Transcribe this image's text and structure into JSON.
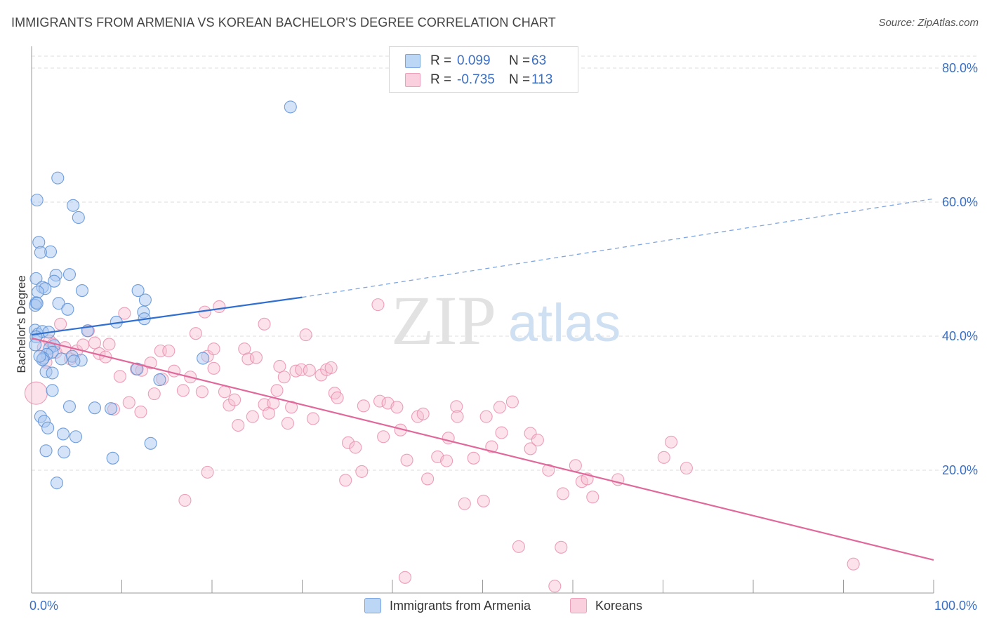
{
  "title": "IMMIGRANTS FROM ARMENIA VS KOREAN BACHELOR'S DEGREE CORRELATION CHART",
  "source": "Source: ZipAtlas.com",
  "watermark": {
    "zip": "ZIP",
    "atlas": "atlas"
  },
  "legend": {
    "armenia": {
      "r_label": "R =",
      "r_value": "0.099",
      "n_label": "N =",
      "n_value": "63"
    },
    "korean": {
      "r_label": "R =",
      "r_value": "-0.735",
      "n_label": "N =",
      "n_value": "113"
    }
  },
  "bottom_legend": {
    "armenia": "Immigrants from Armenia",
    "korean": "Koreans"
  },
  "colors": {
    "armenia_fill": "#a9c8f0",
    "armenia_stroke": "#5b8fd6",
    "armenia_line": "#2f6fd0",
    "korean_fill": "#f7bfd2",
    "korean_stroke": "#e88aaa",
    "korean_line": "#e0689a",
    "tick_text": "#3a6fc4",
    "grid": "#dcdcdc"
  },
  "chart_data": {
    "type": "scatter",
    "xlabel": "",
    "ylabel": "Bachelor's Degree",
    "xlim": [
      0,
      100
    ],
    "ylim": [
      0,
      80
    ],
    "x_tick_labels": [
      {
        "value": 0,
        "label": "0.0%"
      },
      {
        "value": 100,
        "label": "100.0%"
      }
    ],
    "y_tick_labels": [
      {
        "value": 20,
        "label": "20.0%"
      },
      {
        "value": 40,
        "label": "40.0%"
      },
      {
        "value": 60,
        "label": "60.0%"
      },
      {
        "value": 80,
        "label": "80.0%"
      }
    ],
    "grid": true,
    "series": [
      {
        "name": "Immigrants from Armenia",
        "points": [
          [
            28.7,
            74.2
          ],
          [
            2.9,
            63.6
          ],
          [
            0.6,
            60.3
          ],
          [
            4.6,
            59.5
          ],
          [
            5.2,
            57.7
          ],
          [
            0.8,
            54.0
          ],
          [
            2.1,
            52.6
          ],
          [
            1.0,
            52.5
          ],
          [
            4.2,
            49.2
          ],
          [
            2.7,
            49.1
          ],
          [
            0.5,
            48.6
          ],
          [
            2.5,
            48.2
          ],
          [
            1.2,
            47.3
          ],
          [
            1.5,
            47.1
          ],
          [
            0.7,
            46.6
          ],
          [
            5.6,
            46.8
          ],
          [
            11.8,
            46.8
          ],
          [
            12.6,
            45.4
          ],
          [
            0.5,
            45.0
          ],
          [
            3.0,
            44.9
          ],
          [
            0.4,
            44.6
          ],
          [
            4.0,
            44.0
          ],
          [
            12.4,
            43.6
          ],
          [
            12.5,
            42.6
          ],
          [
            9.4,
            42.1
          ],
          [
            0.4,
            40.9
          ],
          [
            0.7,
            40.3
          ],
          [
            1.2,
            40.7
          ],
          [
            0.5,
            39.9
          ],
          [
            2.5,
            38.6
          ],
          [
            2.0,
            38.2
          ],
          [
            2.3,
            37.6
          ],
          [
            1.7,
            37.3
          ],
          [
            1.3,
            36.7
          ],
          [
            1.2,
            36.5
          ],
          [
            4.5,
            37.0
          ],
          [
            5.5,
            36.4
          ],
          [
            4.7,
            36.3
          ],
          [
            19.0,
            36.7
          ],
          [
            11.7,
            35.1
          ],
          [
            1.6,
            34.7
          ],
          [
            2.3,
            34.5
          ],
          [
            14.2,
            33.5
          ],
          [
            2.3,
            31.9
          ],
          [
            4.2,
            29.5
          ],
          [
            7.0,
            29.3
          ],
          [
            8.8,
            29.2
          ],
          [
            1.0,
            28.0
          ],
          [
            1.4,
            27.3
          ],
          [
            1.8,
            26.3
          ],
          [
            3.5,
            25.4
          ],
          [
            4.9,
            25.0
          ],
          [
            13.2,
            24.0
          ],
          [
            1.6,
            22.9
          ],
          [
            3.6,
            22.7
          ],
          [
            9.0,
            21.8
          ],
          [
            2.8,
            18.1
          ],
          [
            0.6,
            44.9
          ],
          [
            1.9,
            40.6
          ],
          [
            0.9,
            37.0
          ],
          [
            3.3,
            36.6
          ],
          [
            6.2,
            40.8
          ],
          [
            0.4,
            38.7
          ]
        ]
      },
      {
        "name": "Koreans",
        "points": [
          [
            0.5,
            31.5
          ],
          [
            1.3,
            38.3
          ],
          [
            1.6,
            36.1
          ],
          [
            2.0,
            39.3
          ],
          [
            2.4,
            38.8
          ],
          [
            2.7,
            37.6
          ],
          [
            3.2,
            41.8
          ],
          [
            3.7,
            38.3
          ],
          [
            4.3,
            36.6
          ],
          [
            5.0,
            37.8
          ],
          [
            5.7,
            38.7
          ],
          [
            6.3,
            40.8
          ],
          [
            7.0,
            39.0
          ],
          [
            7.5,
            37.4
          ],
          [
            8.2,
            36.9
          ],
          [
            8.6,
            38.8
          ],
          [
            9.1,
            29.1
          ],
          [
            9.8,
            34.0
          ],
          [
            10.3,
            43.4
          ],
          [
            10.8,
            30.1
          ],
          [
            11.6,
            35.1
          ],
          [
            12.1,
            28.7
          ],
          [
            12.2,
            34.9
          ],
          [
            13.2,
            36.0
          ],
          [
            13.6,
            31.4
          ],
          [
            14.3,
            37.8
          ],
          [
            14.5,
            33.6
          ],
          [
            15.2,
            37.8
          ],
          [
            15.8,
            34.8
          ],
          [
            16.8,
            31.9
          ],
          [
            17.0,
            15.5
          ],
          [
            17.6,
            33.9
          ],
          [
            18.2,
            40.4
          ],
          [
            18.9,
            31.7
          ],
          [
            19.2,
            43.6
          ],
          [
            19.5,
            19.7
          ],
          [
            19.5,
            37.0
          ],
          [
            20.2,
            38.1
          ],
          [
            20.2,
            35.2
          ],
          [
            20.8,
            44.4
          ],
          [
            21.4,
            31.7
          ],
          [
            21.9,
            29.7
          ],
          [
            22.5,
            30.5
          ],
          [
            22.9,
            26.7
          ],
          [
            23.6,
            38.1
          ],
          [
            24.0,
            36.6
          ],
          [
            24.5,
            28.0
          ],
          [
            24.9,
            36.8
          ],
          [
            25.8,
            29.8
          ],
          [
            25.8,
            41.8
          ],
          [
            26.3,
            28.5
          ],
          [
            26.8,
            30.0
          ],
          [
            27.2,
            31.9
          ],
          [
            27.5,
            35.5
          ],
          [
            28.0,
            33.9
          ],
          [
            28.4,
            27.0
          ],
          [
            28.8,
            29.4
          ],
          [
            29.3,
            34.8
          ],
          [
            29.9,
            35.0
          ],
          [
            30.4,
            40.2
          ],
          [
            30.8,
            34.9
          ],
          [
            31.2,
            27.7
          ],
          [
            32.1,
            34.2
          ],
          [
            32.7,
            35.0
          ],
          [
            33.2,
            35.3
          ],
          [
            33.6,
            31.5
          ],
          [
            33.9,
            30.8
          ],
          [
            34.8,
            18.5
          ],
          [
            35.1,
            24.1
          ],
          [
            35.9,
            23.4
          ],
          [
            36.6,
            19.8
          ],
          [
            36.8,
            29.6
          ],
          [
            38.6,
            30.3
          ],
          [
            38.4,
            44.7
          ],
          [
            39.0,
            25.0
          ],
          [
            39.5,
            30.0
          ],
          [
            40.5,
            29.4
          ],
          [
            40.9,
            26.0
          ],
          [
            41.4,
            4.0
          ],
          [
            41.6,
            21.5
          ],
          [
            42.8,
            28.0
          ],
          [
            43.4,
            28.4
          ],
          [
            43.9,
            18.7
          ],
          [
            45.0,
            22.0
          ],
          [
            46.0,
            21.4
          ],
          [
            46.2,
            24.8
          ],
          [
            47.1,
            29.5
          ],
          [
            47.2,
            28.0
          ],
          [
            48.0,
            15.0
          ],
          [
            49.0,
            21.8
          ],
          [
            50.1,
            15.4
          ],
          [
            50.4,
            28.0
          ],
          [
            51.0,
            23.5
          ],
          [
            51.9,
            29.4
          ],
          [
            52.1,
            25.6
          ],
          [
            53.3,
            30.2
          ],
          [
            54.0,
            8.6
          ],
          [
            55.3,
            25.5
          ],
          [
            55.3,
            23.2
          ],
          [
            56.1,
            24.5
          ],
          [
            57.3,
            20.0
          ],
          [
            58.0,
            2.7
          ],
          [
            58.7,
            8.5
          ],
          [
            58.9,
            16.5
          ],
          [
            60.3,
            20.7
          ],
          [
            61.0,
            18.3
          ],
          [
            61.6,
            18.7
          ],
          [
            62.2,
            16.0
          ],
          [
            65.0,
            18.6
          ],
          [
            70.1,
            21.9
          ],
          [
            70.9,
            24.2
          ],
          [
            72.6,
            20.3
          ],
          [
            91.1,
            6.0
          ]
        ]
      }
    ],
    "trend_lines": [
      {
        "series": "Immigrants from Armenia",
        "solid": [
          [
            0,
            40.2
          ],
          [
            30,
            45.8
          ]
        ],
        "dashed": [
          [
            30,
            45.8
          ],
          [
            100,
            60.5
          ]
        ]
      },
      {
        "series": "Koreans",
        "solid": [
          [
            0,
            39.7
          ],
          [
            100,
            6.6
          ]
        ]
      }
    ]
  }
}
